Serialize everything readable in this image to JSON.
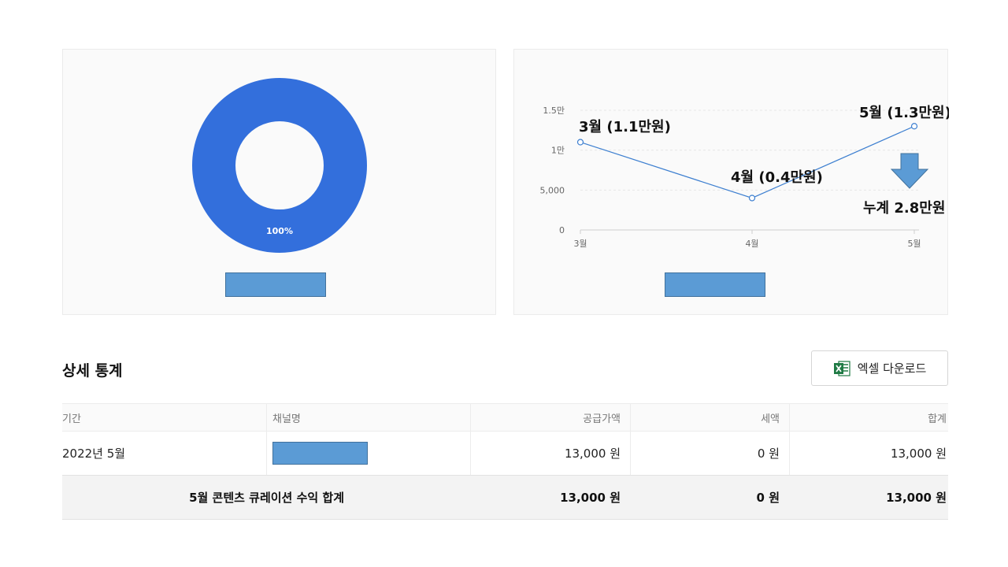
{
  "donut_chart": {
    "slices": [
      {
        "value": 100,
        "label": "100%",
        "color": "#336fdc"
      }
    ]
  },
  "line_chart": {
    "chart_data": {
      "type": "line",
      "categories": [
        "3월",
        "4월",
        "5월"
      ],
      "values": [
        11000,
        4000,
        13000
      ],
      "ylim": [
        0,
        15000
      ],
      "y_ticks": [
        {
          "value": 0,
          "label": "0"
        },
        {
          "value": 5000,
          "label": "5,000"
        },
        {
          "value": 10000,
          "label": "1만"
        },
        {
          "value": 15000,
          "label": "1.5만"
        }
      ],
      "grid": true,
      "line_color": "#3d7fd0",
      "annotations": [
        "3월 (1.1만원)",
        "4월 (0.4만원)",
        "5월 (1.3만원)"
      ],
      "summary": "누계 2.8만원"
    }
  },
  "detail": {
    "title": "상세 통계",
    "excel_button": "엑셀 다운로드",
    "columns": [
      "기간",
      "채널명",
      "공급가액",
      "세액",
      "합계"
    ],
    "rows": [
      {
        "period": "2022년 5월",
        "supply": "13,000 원",
        "tax": "0 원",
        "total": "13,000 원"
      }
    ],
    "total_row": {
      "label": "5월 콘텐츠 큐레이션 수익 합계",
      "supply": "13,000 원",
      "tax": "0 원",
      "total": "13,000 원"
    }
  }
}
